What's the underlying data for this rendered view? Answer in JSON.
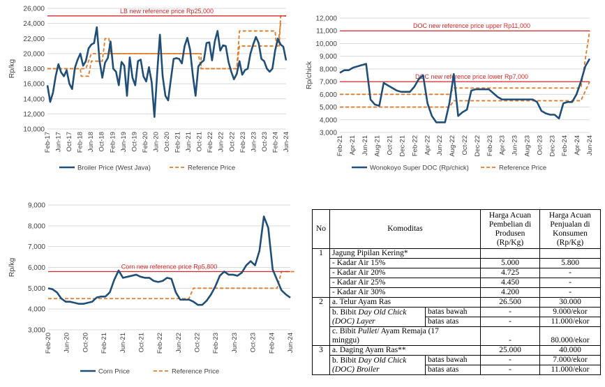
{
  "chart_data": [
    {
      "id": "broiler",
      "type": "line",
      "ylabel": "Rp/kg",
      "ylim": [
        10000,
        26000
      ],
      "yticks": [
        "10,000",
        "12,000",
        "14,000",
        "16,000",
        "18,000",
        "20,000",
        "22,000",
        "24,000",
        "26,000"
      ],
      "xticks": [
        "Feb-17",
        "Jun-17",
        "Oct-17",
        "Feb-18",
        "Jun-18",
        "Oct-18",
        "Feb-19",
        "Jun-19",
        "Oct-19",
        "Feb-20",
        "Jun-20",
        "Oct-20",
        "Feb-21",
        "Jun-21",
        "Oct-21",
        "Feb-22",
        "Jun-22",
        "Oct-22",
        "Feb-23",
        "Jun-23",
        "Oct-23",
        "Feb-24",
        "Jun-24"
      ],
      "annotation": "LB new reference price Rp25,000",
      "ref_line": 25000,
      "legend": [
        "Broiler Price (West Java)",
        "Reference Price"
      ],
      "series": [
        {
          "name": "Broiler Price (West Java)",
          "values": [
            15800,
            13600,
            14800,
            17000,
            18600,
            17500,
            17000,
            17800,
            16000,
            15300,
            18100,
            19200,
            20000,
            18400,
            19000,
            20700,
            21200,
            21400,
            23500,
            19000,
            16800,
            18800,
            19400,
            21600,
            18000,
            17600,
            15800,
            18900,
            18400,
            14400,
            19500,
            16800,
            15800,
            19000,
            19200,
            17000,
            16300,
            18200,
            16200,
            11600,
            17400,
            22500,
            17000,
            14400,
            13800,
            16600,
            19300,
            19400,
            19300,
            18700,
            21000,
            22100,
            20500,
            17100,
            14400,
            18300,
            18800,
            19100,
            21400,
            21500,
            19100,
            21600,
            23000,
            20400,
            21100,
            21000,
            18900,
            17600,
            16600,
            17300,
            19000,
            17200,
            17800,
            18000,
            20000,
            21200,
            22200,
            21400,
            19300,
            19000,
            18000,
            17600,
            18000,
            20400,
            22000,
            21200,
            20900,
            19100
          ]
        },
        {
          "name": "Reference Price",
          "steps": [
            [
              0,
              18000
            ],
            [
              12,
              18000
            ],
            [
              12.3,
              17000
            ],
            [
              15,
              17000
            ],
            [
              16,
              19000
            ],
            [
              20,
              19000
            ],
            [
              21,
              22000
            ],
            [
              22.4,
              22000
            ],
            [
              23,
              20000
            ],
            [
              55,
              20000
            ],
            [
              56,
              18000
            ],
            [
              69,
              18000
            ],
            [
              70,
              23000
            ],
            [
              83,
              23000
            ],
            [
              83.5,
              21000
            ],
            [
              84.5,
              21000
            ],
            [
              85,
              25000
            ],
            [
              87,
              25000
            ]
          ],
          "steps2": [
            [
              0,
              18000
            ],
            [
              14,
              18000
            ],
            [
              15,
              19000
            ],
            [
              16,
              20000
            ],
            [
              56,
              20000
            ],
            [
              56,
              18000
            ],
            [
              69,
              18000
            ],
            [
              70,
              21000
            ],
            [
              84,
              21000
            ],
            [
              85,
              24000
            ]
          ]
        }
      ]
    },
    {
      "id": "doc",
      "type": "line",
      "ylabel": "Rp/chick",
      "ylim": [
        3000,
        12000
      ],
      "yticks": [
        "3,000",
        "4,000",
        "5,000",
        "6,000",
        "7,000",
        "8,000",
        "9,000",
        "10,000",
        "11,000",
        "12,000"
      ],
      "xticks": [
        "Feb-21",
        "Apr-21",
        "Jun-21",
        "Aug-21",
        "Oct-21",
        "Dec-21",
        "Feb-22",
        "Apr-22",
        "Jun-22",
        "Aug-22",
        "Oct-22",
        "Dec-22",
        "Feb-23",
        "Apr-23",
        "Jun-23",
        "Aug-23",
        "Oct-23",
        "Dec-23",
        "Feb-24",
        "Apr-24",
        "Jun-24"
      ],
      "annotation_upper": "DOC new reference price upper Rp11,000",
      "annotation_lower": "DOC new reference price lower Rp7,000",
      "ref_upper": 11000,
      "ref_lower": 7000,
      "legend": [
        "Wonokoyo Super DOC (Rp/chick)",
        "Reference Price"
      ],
      "series": [
        {
          "name": "Wonokoyo Super DOC (Rp/chick)",
          "values": [
            7700,
            7900,
            7900,
            8100,
            8200,
            8300,
            8400,
            5600,
            5200,
            5100,
            6900,
            6700,
            6500,
            6300,
            6200,
            6200,
            6200,
            6600,
            7200,
            7500,
            5300,
            4300,
            3800,
            3800,
            3800,
            5300,
            7600,
            4300,
            4600,
            4800,
            6300,
            6400,
            6400,
            6400,
            6400,
            6100,
            5800,
            5600,
            5600,
            5600,
            5600,
            5600,
            5600,
            5600,
            5600,
            5400,
            4700,
            4500,
            4400,
            4400,
            4100,
            5300,
            5400,
            5400,
            6000,
            7000,
            8200,
            8800
          ]
        },
        {
          "name": "Reference Price",
          "steps": [
            [
              0,
              6000
            ],
            [
              25,
              6000
            ],
            [
              26,
              6500
            ],
            [
              51,
              6500
            ],
            [
              52,
              6500
            ],
            [
              55,
              6500
            ],
            [
              57,
              11000
            ]
          ],
          "steps2": [
            [
              0,
              5000
            ],
            [
              25,
              5000
            ],
            [
              26,
              5500
            ],
            [
              51,
              5500
            ],
            [
              55,
              5500
            ],
            [
              57,
              7000
            ]
          ]
        }
      ]
    },
    {
      "id": "corn",
      "type": "line",
      "ylabel": "Rp/kg",
      "ylim": [
        3000,
        9000
      ],
      "yticks": [
        "3,000",
        "4,000",
        "5,000",
        "6,000",
        "7,000",
        "8,000",
        "9,000"
      ],
      "xticks": [
        "Feb-20",
        "Jun-20",
        "Oct-20",
        "Feb-21",
        "Jun-21",
        "Oct-21",
        "Feb-22",
        "Jun-22",
        "Oct-22",
        "Feb-23",
        "Jun-23",
        "Oct-23",
        "Feb-24",
        "Jun-24"
      ],
      "annotation": "Corn new reference price Rp5,800",
      "ref_line": 5800,
      "legend": [
        "Corn Price",
        "Reference Price"
      ],
      "series": [
        {
          "name": "Corn Price",
          "values": [
            5000,
            4950,
            4800,
            4500,
            4350,
            4350,
            4300,
            4250,
            4250,
            4300,
            4350,
            4550,
            4600,
            4600,
            4800,
            5400,
            5850,
            5500,
            5550,
            5600,
            5650,
            5550,
            5500,
            5500,
            5350,
            5300,
            5350,
            5500,
            5450,
            4800,
            4450,
            4450,
            4450,
            4350,
            4200,
            4200,
            4400,
            4700,
            5100,
            5600,
            5800,
            5650,
            5650,
            5600,
            5750,
            6100,
            6300,
            6100,
            6800,
            8450,
            7900,
            5900,
            5400,
            4900,
            4700,
            4550
          ]
        },
        {
          "name": "Reference Price",
          "steps": [
            [
              0,
              4500
            ],
            [
              32,
              4500
            ],
            [
              33,
              5000
            ],
            [
              51,
              5000
            ],
            [
              52,
              5000
            ],
            [
              53,
              5800
            ],
            [
              56,
              5800
            ]
          ]
        }
      ]
    }
  ],
  "table": {
    "headers": {
      "no": "No",
      "komoditas": "Komoditas",
      "beli": [
        "Harga Acuan",
        "Pembelian di",
        "Produsen",
        "(Rp/Kg)"
      ],
      "jual": [
        "Harga Acuan",
        "Penjualan di",
        "Konsumen",
        "(Rp/Kg)"
      ]
    },
    "rows": {
      "g1_no": "1",
      "g1_title": "Jagung Pipilan Kering*",
      "r1": {
        "label": "- Kadar Air 15%",
        "beli": "5.000",
        "jual": "5.800"
      },
      "r2": {
        "label": "- Kadar Air 20%",
        "beli": "4.725",
        "jual": "-"
      },
      "r3": {
        "label": "- Kadar Air 25%",
        "beli": "4.450",
        "jual": "-"
      },
      "r4": {
        "label": "- Kadar Air 30%",
        "beli": "4.200",
        "jual": "-"
      },
      "g2_no": "2",
      "r5": {
        "label": "a. Telur Ayam Ras",
        "beli": "26.500",
        "jual": "30.000"
      },
      "r6": {
        "label_a": "b. Bibit ",
        "label_i": "Day Old Chick",
        "label_b": "(DOC) Layer",
        "sub1": "batas bawah",
        "beli1": "-",
        "jual1": "9.000/ekor",
        "sub2": "batas atas",
        "beli2": "-",
        "jual2": "11.000/ekor"
      },
      "r7": {
        "label_a": "c. Bibit ",
        "label_i": "Pullet",
        "label_b": "/ Ayam Remaja (17",
        "label_c": "minggu)",
        "beli": "-",
        "jual": "80.000/ekor"
      },
      "g3_no": "3",
      "r8": {
        "label": "a. Daging Ayam Ras**",
        "beli": "25.000",
        "jual": "40.000"
      },
      "r9": {
        "label_a": "b. Bibit ",
        "label_i": "Day Old Chick",
        "label_b": "(DOC) Broiler",
        "sub1": "batas bawah",
        "beli1": "-",
        "jual1": "7.000/ekor",
        "sub2": "batas atas",
        "beli2": "-",
        "jual2": "11.000/ekor"
      }
    }
  },
  "colors": {
    "price": "#1f4e79",
    "reference": "#e07b2a",
    "new_ref": "#d62728",
    "grid": "#d9d9d9",
    "axis_text": "#404040"
  }
}
